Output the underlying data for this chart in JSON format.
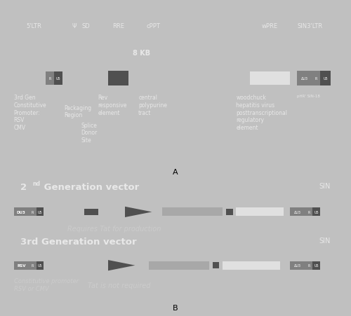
{
  "bg_dark": "#2d2d2d",
  "bg_border": "#c0c0c0",
  "text_light": "#e8e8e8",
  "text_gray": "#cccccc",
  "gray_dark": "#505050",
  "gray_med": "#808080",
  "gray_light": "#a8a8a8",
  "gray_lighter": "#c0c0c0",
  "gray_lightest": "#e0e0e0",
  "white": "#ffffff",
  "panel_A_8kb": "8 KB",
  "gen2_title": "2",
  "gen2_title_rest": "nd Generation vector",
  "gen2_sin": "SIN",
  "gen2_note": "Requires Tat for production",
  "gen3_title": "3rd Generation vector",
  "gen3_sin": "SIN",
  "gen3_note1": "Constitutive promoter\nRSV or CMV",
  "gen3_note2": "Tat is not required"
}
